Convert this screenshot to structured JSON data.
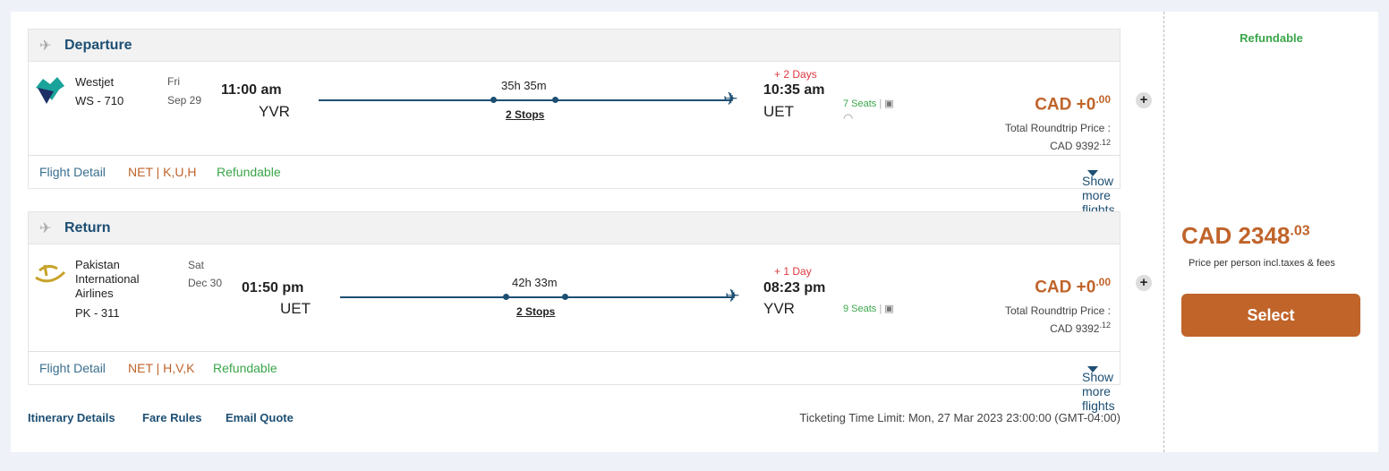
{
  "departure": {
    "title": "Departure",
    "airline": "Westjet",
    "flight_no": "WS - 710",
    "day": "Fri",
    "date": "Sep 29",
    "dep_time": "11:00 am",
    "dep_airport": "YVR",
    "duration": "35h 35m",
    "stops": "2 Stops",
    "day_offset": "+ 2 Days",
    "arr_time": "10:35 am",
    "arr_airport": "UET",
    "seats": "7 Seats",
    "price_main": "CAD +0",
    "price_cents": ".00",
    "total_label": "Total Roundtrip Price :",
    "total_main": "CAD 9392",
    "total_cents": ".12",
    "flight_detail": "Flight Detail",
    "fare_class": "NET | K,U,H",
    "refundable": "Refundable",
    "show_more": "Show more flights"
  },
  "return": {
    "title": "Return",
    "airline": "Pakistan International Airlines",
    "flight_no": "PK - 311",
    "day": "Sat",
    "date": "Dec 30",
    "dep_time": "01:50 pm",
    "dep_airport": "UET",
    "duration": "42h 33m",
    "stops": "2 Stops",
    "day_offset": "+ 1 Day",
    "arr_time": "08:23 pm",
    "arr_airport": "YVR",
    "seats": "9 Seats",
    "price_main": "CAD +0",
    "price_cents": ".00",
    "total_label": "Total Roundtrip Price :",
    "total_main": "CAD 9392",
    "total_cents": ".12",
    "flight_detail": "Flight Detail",
    "fare_class": "NET | H,V,K",
    "refundable": "Refundable",
    "show_more": "Show more flights"
  },
  "links": {
    "itinerary": "Itinerary Details",
    "fare_rules": "Fare Rules",
    "email_quote": "Email Quote"
  },
  "ticketing_limit": "Ticketing Time Limit: Mon, 27 Mar 2023 23:00:00 (GMT-04:00)",
  "summary": {
    "refundable": "Refundable",
    "price_main": "CAD 2348",
    "price_cents": ".03",
    "price_note": "Price per person incl.taxes & fees",
    "select": "Select"
  },
  "colors": {
    "accent": "#c0642a",
    "primary": "#1d4f73",
    "green": "#3aa64a",
    "red": "#e0383e"
  }
}
